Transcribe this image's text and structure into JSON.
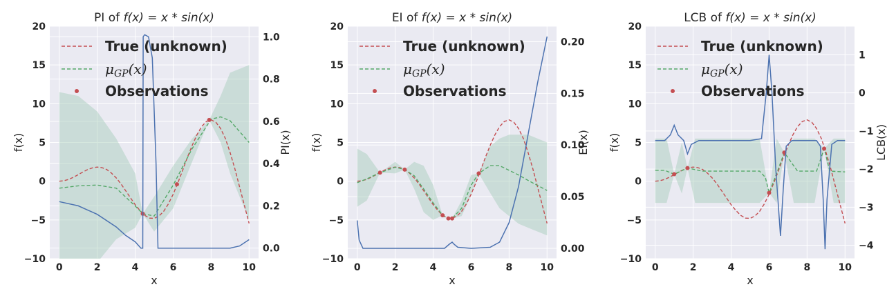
{
  "chart_data": [
    {
      "type": "line",
      "title": "PI of f(x) = x * sin(x)",
      "title_parts": {
        "prefix": "PI of ",
        "fx": "f(x) = x * sin(x)"
      },
      "xlabel": "x",
      "ylabel": "f(x)",
      "y2label": "PI(x)",
      "xlim": [
        -0.5,
        10.5
      ],
      "ylim": [
        -10,
        20
      ],
      "y2lim": [
        -0.05,
        1.05
      ],
      "x_ticks": [
        0,
        2,
        4,
        6,
        8,
        10
      ],
      "y_ticks": [
        -10,
        -5,
        0,
        5,
        10,
        15,
        20
      ],
      "y2_ticks": [
        0.0,
        0.2,
        0.4,
        0.6,
        0.8,
        1.0
      ],
      "y2_tick_labels": [
        "0.0",
        "0.2",
        "0.4",
        "0.6",
        "0.8",
        "1.0"
      ],
      "observations": {
        "x": [
          4.4,
          6.2,
          7.9
        ],
        "y": [
          -4.2,
          -0.4,
          7.9
        ]
      },
      "gp_mean": {
        "x": [
          0,
          1,
          2,
          3,
          4,
          4.4,
          5,
          6,
          7,
          8,
          8.5,
          9,
          10
        ],
        "y": [
          -0.9,
          -0.6,
          -0.5,
          -0.9,
          -3.2,
          -4.2,
          -4.5,
          -0.5,
          4.2,
          8.0,
          8.3,
          7.8,
          5.0
        ]
      },
      "gp_band": {
        "x": [
          0,
          1,
          2,
          3,
          4,
          4.4,
          5,
          6,
          7,
          7.9,
          8.5,
          9,
          10
        ],
        "upper": [
          11.5,
          11.0,
          9.0,
          5.5,
          1.0,
          -4.2,
          -2.0,
          2.0,
          5.5,
          7.9,
          11.0,
          14.0,
          15.0
        ],
        "lower": [
          -13.0,
          -12.5,
          -10.5,
          -7.5,
          -6.0,
          -4.2,
          -6.5,
          -3.5,
          2.5,
          7.9,
          5.0,
          1.0,
          -5.0
        ]
      },
      "acquisition": {
        "name": "PI(x)",
        "x": [
          0,
          1,
          2,
          3,
          3.5,
          4,
          4.3,
          4.4,
          4.42,
          4.5,
          4.7,
          4.9,
          5.1,
          5.2,
          5.4,
          6,
          7,
          8,
          9,
          9.5,
          10
        ],
        "y": [
          0.22,
          0.2,
          0.16,
          0.1,
          0.06,
          0.03,
          0.0,
          0.0,
          1.0,
          1.01,
          1.0,
          0.9,
          0.4,
          0.0,
          0.0,
          0.0,
          0.0,
          0.0,
          0.0,
          0.01,
          0.04
        ]
      }
    },
    {
      "type": "line",
      "title": "EI of f(x) = x * sin(x)",
      "title_parts": {
        "prefix": "EI of ",
        "fx": "f(x) = x * sin(x)"
      },
      "xlabel": "x",
      "ylabel": "f(x)",
      "y2label": "EI(x)",
      "xlim": [
        -0.5,
        10.5
      ],
      "ylim": [
        -10,
        20
      ],
      "y2lim": [
        -0.01,
        0.215
      ],
      "x_ticks": [
        0,
        2,
        4,
        6,
        8,
        10
      ],
      "y_ticks": [
        -10,
        -5,
        0,
        5,
        10,
        15,
        20
      ],
      "y2_ticks": [
        0.0,
        0.05,
        0.1,
        0.15,
        0.2
      ],
      "y2_tick_labels": [
        "0.00",
        "0.05",
        "0.10",
        "0.15",
        "0.20"
      ],
      "observations": {
        "x": [
          1.2,
          2.5,
          4.5,
          4.8,
          5.0,
          6.4
        ],
        "y": [
          1.1,
          1.5,
          -4.4,
          -4.8,
          -4.8,
          1.0
        ]
      },
      "gp_mean": {
        "x": [
          0,
          0.5,
          1.2,
          2,
          2.5,
          3,
          3.5,
          4,
          4.5,
          4.8,
          5,
          5.5,
          6,
          6.4,
          7,
          7.5,
          8,
          8.5,
          9,
          10
        ],
        "y": [
          -0.2,
          0.3,
          1.1,
          1.8,
          1.5,
          0.7,
          -1.0,
          -2.8,
          -4.4,
          -4.8,
          -4.8,
          -3.5,
          -0.5,
          1.0,
          2.0,
          2.0,
          1.4,
          0.8,
          0.1,
          -1.2
        ]
      },
      "gp_band": {
        "x": [
          0,
          0.5,
          1.2,
          2,
          2.5,
          3,
          3.5,
          4,
          4.5,
          4.8,
          5,
          5.5,
          6,
          6.4,
          7,
          7.5,
          8,
          8.5,
          9,
          10
        ],
        "upper": [
          4.2,
          3.5,
          1.1,
          2.5,
          1.5,
          2.5,
          2.0,
          -0.5,
          -4.4,
          -4.8,
          -4.8,
          -2.5,
          0.8,
          1.0,
          4.5,
          5.5,
          6.0,
          6.0,
          6.0,
          5.0
        ],
        "lower": [
          -3.3,
          -2.5,
          1.1,
          1.0,
          1.5,
          -1.0,
          -4.0,
          -5.0,
          -4.4,
          -4.8,
          -4.8,
          -4.5,
          -1.8,
          1.0,
          -1.5,
          -3.5,
          -4.5,
          -5.5,
          -6.0,
          -7.0
        ]
      },
      "acquisition": {
        "name": "EI(x)",
        "x": [
          0,
          0.1,
          0.3,
          1,
          2,
          3,
          4,
          4.6,
          4.85,
          5.0,
          5.1,
          5.3,
          6,
          7,
          7.5,
          8,
          8.5,
          9,
          9.5,
          10
        ],
        "y": [
          0.027,
          0.008,
          0.0,
          0.0,
          0.0,
          0.0,
          0.0,
          0.0,
          0.004,
          0.006,
          0.004,
          0.001,
          0.0,
          0.001,
          0.006,
          0.025,
          0.06,
          0.11,
          0.16,
          0.205
        ]
      }
    },
    {
      "type": "line",
      "title": "LCB of f(x) = x * sin(x)",
      "title_parts": {
        "prefix": "LCB of ",
        "fx": "f(x) = x * sin(x)"
      },
      "xlabel": "x",
      "ylabel": "f(x)",
      "y2label": "LCB(x)",
      "xlim": [
        -0.5,
        10.5
      ],
      "ylim": [
        -10,
        20
      ],
      "y2lim": [
        -4.35,
        1.75
      ],
      "x_ticks": [
        0,
        2,
        4,
        6,
        8,
        10
      ],
      "y_ticks": [
        -10,
        -5,
        0,
        5,
        10,
        15,
        20
      ],
      "y2_ticks": [
        -4,
        -3,
        -2,
        -1,
        0,
        1
      ],
      "y2_tick_labels": [
        "−4",
        "−3",
        "−2",
        "−1",
        "0",
        "1"
      ],
      "observations": {
        "x": [
          1.0,
          1.7,
          6.0,
          6.8,
          8.9
        ],
        "y": [
          0.9,
          1.7,
          -1.5,
          3.7,
          4.2
        ]
      },
      "gp_mean": {
        "x": [
          0,
          0.5,
          1.0,
          1.7,
          2.5,
          5.5,
          5.8,
          6.0,
          6.4,
          6.8,
          7.5,
          8.5,
          8.9,
          9.2,
          10
        ],
        "y": [
          1.4,
          1.4,
          0.9,
          1.7,
          1.3,
          1.3,
          0.5,
          -1.5,
          1.0,
          3.7,
          1.3,
          1.3,
          4.2,
          1.3,
          1.2
        ]
      },
      "gp_band": {
        "x": [
          0,
          0.6,
          1.0,
          1.4,
          1.7,
          2.1,
          2.5,
          5.5,
          6.0,
          6.4,
          6.8,
          7.3,
          8.4,
          8.9,
          9.4,
          10
        ],
        "upper": [
          5.5,
          5.5,
          0.9,
          5.0,
          1.7,
          5.5,
          5.5,
          5.5,
          -1.5,
          5.5,
          3.7,
          5.5,
          5.5,
          4.2,
          5.5,
          5.5
        ],
        "lower": [
          -2.8,
          -2.8,
          0.9,
          -1.6,
          1.7,
          -2.8,
          -2.8,
          -2.8,
          -1.5,
          -2.8,
          3.7,
          -2.8,
          -2.8,
          4.2,
          -2.8,
          -2.8
        ]
      },
      "acquisition": {
        "name": "LCB(x)",
        "x": [
          0,
          0.5,
          0.8,
          1.0,
          1.2,
          1.5,
          1.7,
          1.9,
          2.3,
          5.0,
          5.6,
          5.85,
          6.0,
          6.15,
          6.35,
          6.6,
          6.75,
          6.9,
          7.2,
          7.5,
          8.5,
          8.7,
          8.85,
          8.95,
          9.05,
          9.3,
          9.6,
          10
        ],
        "y": [
          -1.25,
          -1.25,
          -1.1,
          -0.85,
          -1.1,
          -1.25,
          -1.6,
          -1.35,
          -1.25,
          -1.25,
          -1.2,
          0.0,
          1.0,
          0.0,
          -2.0,
          -3.75,
          -2.5,
          -1.4,
          -1.25,
          -1.25,
          -1.25,
          -1.4,
          -2.8,
          -4.1,
          -2.8,
          -1.35,
          -1.25,
          -1.25
        ]
      }
    }
  ],
  "legend": {
    "true_label": "True (unknown)",
    "gp_mu": "μ",
    "gp_sub": "GP",
    "gp_arg": "(x)",
    "obs_label": "Observations"
  },
  "colors": {
    "true_function": "#c44e52",
    "gp_mean": "#55a868",
    "gp_band": "#a5cbb8",
    "acquisition": "#4c72b0",
    "observation": "#c44e52",
    "axes_background": "#eaeaf2"
  },
  "true_function": {
    "name": "True (unknown)",
    "x": [
      0,
      0.25,
      0.5,
      0.75,
      1,
      1.25,
      1.5,
      1.75,
      2,
      2.25,
      2.5,
      2.75,
      3,
      3.25,
      3.5,
      3.75,
      4,
      4.25,
      4.5,
      4.75,
      5,
      5.25,
      5.5,
      5.75,
      6,
      6.25,
      6.5,
      6.75,
      7,
      7.25,
      7.5,
      7.75,
      8,
      8.25,
      8.5,
      8.75,
      9,
      9.25,
      9.5,
      9.75,
      10
    ],
    "y": [
      0,
      0.06,
      0.24,
      0.51,
      0.84,
      1.19,
      1.5,
      1.72,
      1.82,
      1.75,
      1.5,
      1.05,
      0.42,
      -0.35,
      -1.23,
      -2.14,
      -3.03,
      -3.78,
      -4.4,
      -4.77,
      -4.79,
      -4.5,
      -3.89,
      -2.92,
      -1.68,
      -0.21,
      1.4,
      3.06,
      4.6,
      5.97,
      7.04,
      7.71,
      7.91,
      7.61,
      6.8,
      5.51,
      3.71,
      1.61,
      -0.72,
      -3.09,
      -5.44
    ]
  }
}
